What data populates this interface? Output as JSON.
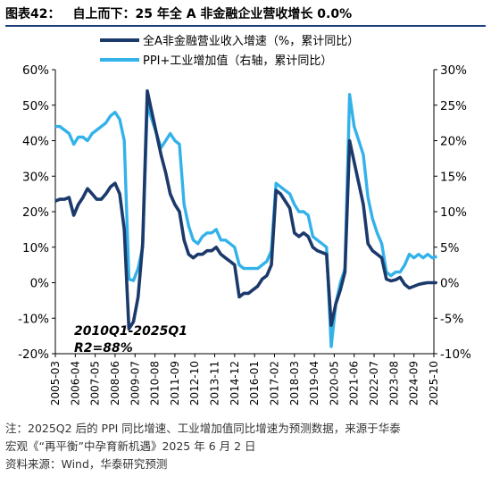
{
  "title": {
    "figure_label": "图表42：",
    "text": "自上而下：25 年全 A 非金融企业营收增长 0.0%"
  },
  "notes": {
    "line1": "注：2025Q2 后的 PPI 同比增速、工业增加值同比增速为预测数据，来源于华泰",
    "line2": "宏观《“再平衡”中孕育新机遇》2025 年 6 月 2 日",
    "source": "资料来源：Wind，华泰研究预测"
  },
  "chart_data": {
    "type": "line",
    "legend": [
      {
        "name": "全A非金融营业收入增速（%，累计同比）",
        "color": "#1b3a6b"
      },
      {
        "name": "PPI+工业增加值（右轴，累计同比）",
        "color": "#33b2ea"
      }
    ],
    "legend_position": "top-center",
    "annotation": {
      "line1": "2010Q1-2025Q1",
      "line2": "R2=88%"
    },
    "x_tick_labels": [
      "2005-03",
      "2006-04",
      "2007-05",
      "2008-06",
      "2009-07",
      "2010-08",
      "2011-09",
      "2012-10",
      "2013-11",
      "2014-12",
      "2016-01",
      "2017-02",
      "2018-03",
      "2019-04",
      "2020-05",
      "2021-06",
      "2022-07",
      "2023-08",
      "2024-09",
      "2025-10"
    ],
    "y_left": {
      "min": -20,
      "max": 60,
      "step": 10,
      "tick_labels": [
        "-20%",
        "-10%",
        "0%",
        "10%",
        "20%",
        "30%",
        "40%",
        "50%",
        "60%"
      ]
    },
    "y_right": {
      "min": -10,
      "max": 30,
      "step": 5,
      "tick_labels": [
        "-10%",
        "-5%",
        "0%",
        "5%",
        "10%",
        "15%",
        "20%",
        "25%",
        "30%"
      ]
    },
    "series": [
      {
        "name": "全A非金融营业收入增速（%，累计同比）",
        "axis": "left",
        "color": "#1b3a6b",
        "points": [
          [
            "2005-03",
            23
          ],
          [
            "2005-06",
            23.5
          ],
          [
            "2005-09",
            23.5
          ],
          [
            "2005-12",
            24
          ],
          [
            "2006-03",
            19
          ],
          [
            "2006-06",
            22
          ],
          [
            "2006-09",
            24
          ],
          [
            "2006-12",
            26.5
          ],
          [
            "2007-03",
            25
          ],
          [
            "2007-06",
            23.5
          ],
          [
            "2007-09",
            23.5
          ],
          [
            "2007-12",
            25
          ],
          [
            "2008-03",
            27
          ],
          [
            "2008-06",
            28
          ],
          [
            "2008-09",
            25
          ],
          [
            "2008-12",
            15
          ],
          [
            "2009-03",
            -13
          ],
          [
            "2009-06",
            -11
          ],
          [
            "2009-09",
            -4
          ],
          [
            "2009-12",
            11
          ],
          [
            "2010-03",
            54
          ],
          [
            "2010-06",
            48
          ],
          [
            "2010-09",
            42
          ],
          [
            "2010-12",
            36
          ],
          [
            "2011-03",
            31
          ],
          [
            "2011-06",
            25
          ],
          [
            "2011-09",
            22
          ],
          [
            "2011-12",
            20
          ],
          [
            "2012-03",
            12
          ],
          [
            "2012-06",
            8
          ],
          [
            "2012-09",
            7
          ],
          [
            "2012-12",
            8
          ],
          [
            "2013-03",
            8
          ],
          [
            "2013-06",
            9
          ],
          [
            "2013-09",
            9
          ],
          [
            "2013-12",
            10
          ],
          [
            "2014-03",
            8
          ],
          [
            "2014-06",
            7
          ],
          [
            "2014-09",
            6
          ],
          [
            "2014-12",
            5
          ],
          [
            "2015-03",
            -4
          ],
          [
            "2015-06",
            -3
          ],
          [
            "2015-09",
            -3
          ],
          [
            "2015-12",
            -2
          ],
          [
            "2016-03",
            -1
          ],
          [
            "2016-06",
            1
          ],
          [
            "2016-09",
            2
          ],
          [
            "2016-12",
            5
          ],
          [
            "2017-03",
            26
          ],
          [
            "2017-06",
            25
          ],
          [
            "2017-09",
            23
          ],
          [
            "2017-12",
            21
          ],
          [
            "2018-03",
            14
          ],
          [
            "2018-06",
            13
          ],
          [
            "2018-09",
            14
          ],
          [
            "2018-12",
            13
          ],
          [
            "2019-03",
            10
          ],
          [
            "2019-06",
            9
          ],
          [
            "2019-09",
            8.5
          ],
          [
            "2019-12",
            8
          ],
          [
            "2020-03",
            -12
          ],
          [
            "2020-06",
            -6
          ],
          [
            "2020-09",
            -2
          ],
          [
            "2020-12",
            3
          ],
          [
            "2021-03",
            40
          ],
          [
            "2021-06",
            34
          ],
          [
            "2021-09",
            28
          ],
          [
            "2021-12",
            22
          ],
          [
            "2022-03",
            11
          ],
          [
            "2022-06",
            9
          ],
          [
            "2022-09",
            8
          ],
          [
            "2022-12",
            7
          ],
          [
            "2023-03",
            1
          ],
          [
            "2023-06",
            0.5
          ],
          [
            "2023-09",
            0.8
          ],
          [
            "2023-12",
            1.5
          ],
          [
            "2024-03",
            -0.5
          ],
          [
            "2024-06",
            -1.5
          ],
          [
            "2024-09",
            -1
          ],
          [
            "2024-12",
            -0.5
          ],
          [
            "2025-03",
            -0.2
          ],
          [
            "2025-06",
            0
          ],
          [
            "2025-09",
            0
          ],
          [
            "2025-12",
            0
          ]
        ]
      },
      {
        "name": "PPI+工业增加值（右轴，累计同比）",
        "axis": "right",
        "color": "#33b2ea",
        "points": [
          [
            "2005-03",
            22
          ],
          [
            "2005-06",
            22
          ],
          [
            "2005-09",
            21.5
          ],
          [
            "2005-12",
            21
          ],
          [
            "2006-03",
            19.5
          ],
          [
            "2006-06",
            20.5
          ],
          [
            "2006-09",
            20.5
          ],
          [
            "2006-12",
            20
          ],
          [
            "2007-03",
            21
          ],
          [
            "2007-06",
            21.5
          ],
          [
            "2007-09",
            22
          ],
          [
            "2007-12",
            22.5
          ],
          [
            "2008-03",
            23.5
          ],
          [
            "2008-06",
            24
          ],
          [
            "2008-09",
            23
          ],
          [
            "2008-12",
            20
          ],
          [
            "2009-03",
            0.5
          ],
          [
            "2009-06",
            0.3
          ],
          [
            "2009-09",
            2
          ],
          [
            "2009-12",
            5
          ],
          [
            "2010-03",
            25
          ],
          [
            "2010-06",
            23
          ],
          [
            "2010-09",
            21
          ],
          [
            "2010-12",
            19
          ],
          [
            "2011-03",
            20
          ],
          [
            "2011-06",
            21
          ],
          [
            "2011-09",
            20
          ],
          [
            "2011-12",
            19.5
          ],
          [
            "2012-03",
            11
          ],
          [
            "2012-06",
            8
          ],
          [
            "2012-09",
            6
          ],
          [
            "2012-12",
            5.5
          ],
          [
            "2013-03",
            6.5
          ],
          [
            "2013-06",
            7
          ],
          [
            "2013-09",
            7
          ],
          [
            "2013-12",
            7.5
          ],
          [
            "2014-03",
            6
          ],
          [
            "2014-06",
            6
          ],
          [
            "2014-09",
            5.5
          ],
          [
            "2014-12",
            5
          ],
          [
            "2015-03",
            2.5
          ],
          [
            "2015-06",
            2
          ],
          [
            "2015-09",
            2
          ],
          [
            "2015-12",
            2
          ],
          [
            "2016-03",
            2
          ],
          [
            "2016-06",
            2.5
          ],
          [
            "2016-09",
            3
          ],
          [
            "2016-12",
            4.5
          ],
          [
            "2017-03",
            14
          ],
          [
            "2017-06",
            13.5
          ],
          [
            "2017-09",
            13
          ],
          [
            "2017-12",
            12.5
          ],
          [
            "2018-03",
            11
          ],
          [
            "2018-06",
            10
          ],
          [
            "2018-09",
            10
          ],
          [
            "2018-12",
            9.5
          ],
          [
            "2019-03",
            6.5
          ],
          [
            "2019-06",
            6
          ],
          [
            "2019-09",
            5.5
          ],
          [
            "2019-12",
            5
          ],
          [
            "2020-03",
            -9
          ],
          [
            "2020-06",
            -3
          ],
          [
            "2020-09",
            0
          ],
          [
            "2020-12",
            2
          ],
          [
            "2021-03",
            26.5
          ],
          [
            "2021-06",
            22
          ],
          [
            "2021-09",
            20
          ],
          [
            "2021-12",
            18
          ],
          [
            "2022-03",
            12
          ],
          [
            "2022-06",
            9
          ],
          [
            "2022-09",
            7
          ],
          [
            "2022-12",
            5.5
          ],
          [
            "2023-03",
            1.5
          ],
          [
            "2023-06",
            1
          ],
          [
            "2023-09",
            1.5
          ],
          [
            "2023-12",
            1.5
          ],
          [
            "2024-03",
            2.5
          ],
          [
            "2024-06",
            4
          ],
          [
            "2024-09",
            3.5
          ],
          [
            "2024-12",
            4
          ],
          [
            "2025-03",
            3.5
          ],
          [
            "2025-06",
            4
          ],
          [
            "2025-09",
            3.5
          ],
          [
            "2025-12",
            3.7
          ]
        ]
      }
    ]
  }
}
